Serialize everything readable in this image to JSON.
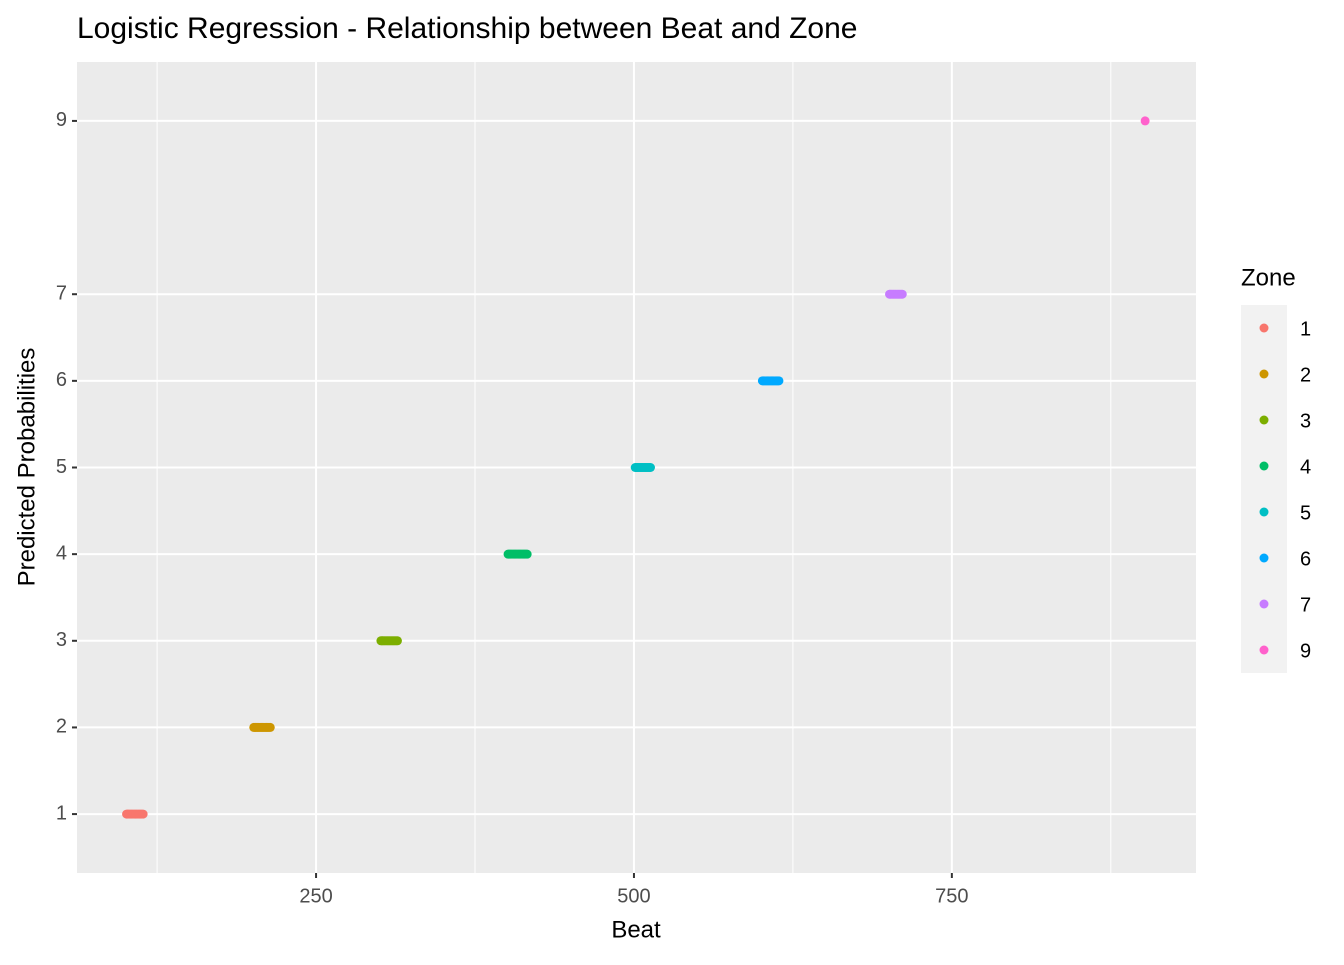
{
  "chart_data": {
    "type": "scatter",
    "title": "Logistic Regression - Relationship between Beat and Zone",
    "x_label": "Beat",
    "y_label": "Predicted Probabilities",
    "legend_title": "Zone",
    "legend_position": "right",
    "grid": true,
    "xlim": [
      62,
      942
    ],
    "xticks": [
      250,
      500,
      750
    ],
    "ylim": [
      0.32,
      9.68
    ],
    "yticks": [
      1,
      2,
      3,
      4,
      5,
      6,
      7,
      9
    ],
    "series": [
      {
        "name": "1",
        "color": "#F8766D",
        "x": [
          101,
          102,
          103,
          104,
          105,
          106,
          107,
          108,
          109,
          110,
          111,
          112,
          113,
          114
        ],
        "values": [
          1,
          1,
          1,
          1,
          1,
          1,
          1,
          1,
          1,
          1,
          1,
          1,
          1,
          1
        ]
      },
      {
        "name": "2",
        "color": "#CD9600",
        "x": [
          201,
          202,
          203,
          204,
          205,
          206,
          207,
          208,
          209,
          210,
          211,
          212,
          213,
          214
        ],
        "values": [
          2,
          2,
          2,
          2,
          2,
          2,
          2,
          2,
          2,
          2,
          2,
          2,
          2,
          2
        ]
      },
      {
        "name": "3",
        "color": "#7CAE00",
        "x": [
          301,
          302,
          303,
          304,
          305,
          306,
          307,
          308,
          309,
          310,
          311,
          312,
          313,
          314
        ],
        "values": [
          3,
          3,
          3,
          3,
          3,
          3,
          3,
          3,
          3,
          3,
          3,
          3,
          3,
          3
        ]
      },
      {
        "name": "4",
        "color": "#00BE67",
        "x": [
          401,
          402,
          403,
          404,
          405,
          406,
          407,
          408,
          409,
          410,
          411,
          412,
          413,
          414,
          415,
          416
        ],
        "values": [
          4,
          4,
          4,
          4,
          4,
          4,
          4,
          4,
          4,
          4,
          4,
          4,
          4,
          4,
          4,
          4
        ]
      },
      {
        "name": "5",
        "color": "#00BFC4",
        "x": [
          501,
          502,
          503,
          504,
          505,
          506,
          507,
          508,
          509,
          510,
          511,
          512,
          513
        ],
        "values": [
          5,
          5,
          5,
          5,
          5,
          5,
          5,
          5,
          5,
          5,
          5,
          5,
          5
        ]
      },
      {
        "name": "6",
        "color": "#00A9FF",
        "x": [
          601,
          602,
          603,
          604,
          605,
          606,
          607,
          608,
          609,
          610,
          611,
          612,
          613,
          614
        ],
        "values": [
          6,
          6,
          6,
          6,
          6,
          6,
          6,
          6,
          6,
          6,
          6,
          6,
          6,
          6
        ]
      },
      {
        "name": "7",
        "color": "#C77CFF",
        "x": [
          701,
          702,
          703,
          704,
          705,
          706,
          707,
          708,
          709,
          710,
          711
        ],
        "values": [
          7,
          7,
          7,
          7,
          7,
          7,
          7,
          7,
          7,
          7,
          7
        ]
      },
      {
        "name": "9",
        "color": "#FF61CC",
        "x": [
          902
        ],
        "values": [
          9
        ]
      }
    ]
  }
}
